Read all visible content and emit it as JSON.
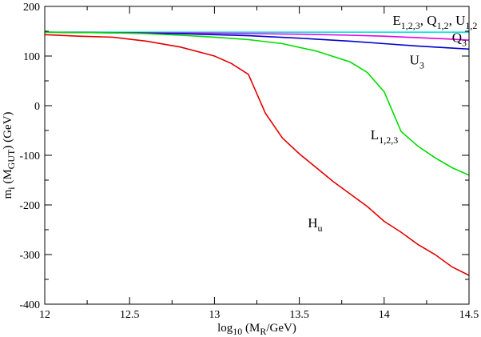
{
  "chart_data": {
    "type": "line",
    "xlabel": {
      "main": "log",
      "sub1": "10",
      "mid": " (M",
      "sub2": "R",
      "end": "/GeV)"
    },
    "ylabel": {
      "main": "m",
      "sub1": "i",
      "mid": " (M",
      "sub2": "GUT",
      "end": ") (GeV)"
    },
    "xlim": [
      12,
      14.5
    ],
    "ylim": [
      -400,
      200
    ],
    "x_ticks": [
      12,
      12.5,
      13,
      13.5,
      14,
      14.5
    ],
    "x_tick_labels": [
      "12",
      "12.5",
      "13",
      "13.5",
      "14",
      "14.5"
    ],
    "y_ticks": [
      -400,
      -300,
      -200,
      -100,
      0,
      100,
      200
    ],
    "y_tick_labels": [
      "-400",
      "-300",
      "-200",
      "-100",
      "0",
      "100",
      "200"
    ],
    "grid": false,
    "series": [
      {
        "color": "#00e5e5",
        "x": [
          12,
          12.5,
          13,
          13.5,
          14,
          14.5
        ],
        "y": [
          148,
          148,
          148,
          148,
          148,
          148
        ]
      },
      {
        "color": "#e600e6",
        "x": [
          12,
          12.5,
          13,
          13.5,
          13.8,
          14,
          14.2,
          14.4,
          14.5
        ],
        "y": [
          148,
          147,
          146,
          144,
          142,
          140,
          137,
          134,
          132
        ]
      },
      {
        "color": "#0000cc",
        "x": [
          12,
          12.4,
          12.8,
          13,
          13.2,
          13.5,
          13.8,
          14,
          14.2,
          14.4,
          14.5
        ],
        "y": [
          148,
          147,
          145,
          143,
          141,
          136,
          130,
          125,
          120,
          116,
          114
        ]
      },
      {
        "color": "#00dd00",
        "x": [
          12,
          12.4,
          12.6,
          12.8,
          13,
          13.2,
          13.4,
          13.6,
          13.8,
          13.9,
          14,
          14.1,
          14.2,
          14.3,
          14.4,
          14.5
        ],
        "y": [
          148,
          147,
          145,
          142,
          138,
          133,
          125,
          110,
          88,
          67,
          28,
          -52,
          -82,
          -105,
          -125,
          -140
        ]
      },
      {
        "color": "#e60000",
        "x": [
          12,
          12.2,
          12.4,
          12.6,
          12.8,
          13,
          13.1,
          13.2,
          13.3,
          13.4,
          13.5,
          13.7,
          13.9,
          14,
          14.1,
          14.2,
          14.3,
          14.4,
          14.5
        ],
        "y": [
          143,
          140,
          138,
          130,
          118,
          100,
          85,
          63,
          -15,
          -65,
          -97,
          -153,
          -203,
          -233,
          -255,
          -280,
          -300,
          -325,
          -342
        ]
      }
    ],
    "annotations": [
      {
        "id": "e",
        "x": 14.05,
        "y": 163,
        "parts": [
          [
            "E",
            ""
          ],
          [
            "1,2,3",
            "sub"
          ],
          [
            ", Q",
            ""
          ],
          [
            "1,2",
            "sub"
          ],
          [
            ", U",
            ""
          ],
          [
            "1,2",
            "sub"
          ]
        ]
      },
      {
        "id": "q3",
        "x": 14.4,
        "y": 128,
        "parts": [
          [
            "Q",
            ""
          ],
          [
            "3",
            "sub"
          ]
        ]
      },
      {
        "id": "u3",
        "x": 14.15,
        "y": 83,
        "parts": [
          [
            "U",
            ""
          ],
          [
            "3",
            "sub"
          ]
        ]
      },
      {
        "id": "l",
        "x": 13.92,
        "y": -68,
        "parts": [
          [
            "L",
            ""
          ],
          [
            "1,2,3",
            "sub"
          ]
        ]
      },
      {
        "id": "hu",
        "x": 13.55,
        "y": -245,
        "parts": [
          [
            "H",
            ""
          ],
          [
            "u",
            "sub"
          ]
        ]
      }
    ]
  }
}
